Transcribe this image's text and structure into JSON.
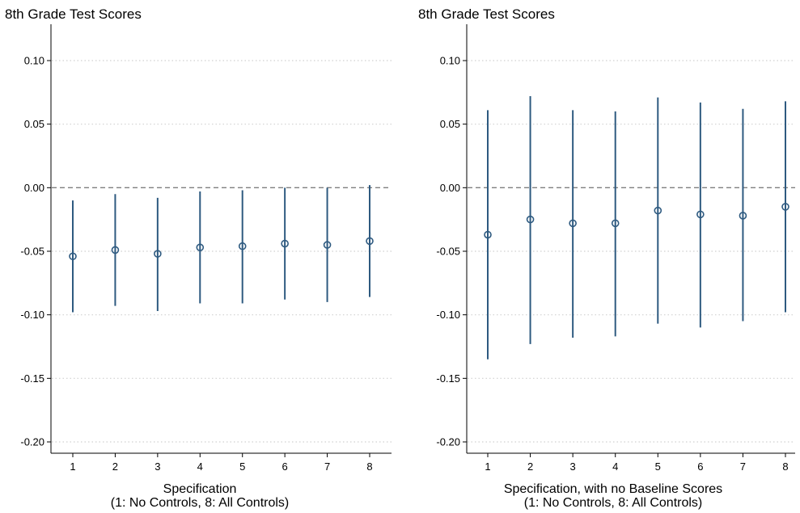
{
  "chart_data": [
    {
      "type": "scatter",
      "subtype": "coefficient-plot-with-confidence-intervals",
      "title": "8th Grade Test Scores",
      "xlabel_line1": "Specification",
      "xlabel_line2": "(1: No Controls, 8: All Controls)",
      "x": [
        1,
        2,
        3,
        4,
        5,
        6,
        7,
        8
      ],
      "x_ticks": [
        "1",
        "2",
        "3",
        "4",
        "5",
        "6",
        "7",
        "8"
      ],
      "estimates": [
        -0.054,
        -0.049,
        -0.052,
        -0.047,
        -0.046,
        -0.044,
        -0.045,
        -0.042
      ],
      "ci_low": [
        -0.098,
        -0.093,
        -0.097,
        -0.091,
        -0.091,
        -0.088,
        -0.09,
        -0.086
      ],
      "ci_high": [
        -0.01,
        -0.005,
        -0.008,
        -0.003,
        -0.002,
        0.0,
        0.0,
        0.002
      ],
      "ylim": [
        -0.2,
        0.1
      ],
      "y_ticks": [
        "0.10",
        "0.05",
        "0.00",
        "-0.05",
        "-0.10",
        "-0.15",
        "-0.20"
      ],
      "y_tick_values": [
        0.1,
        0.05,
        0.0,
        -0.05,
        -0.1,
        -0.15,
        -0.2
      ],
      "reference_line": 0,
      "grid": true
    },
    {
      "type": "scatter",
      "subtype": "coefficient-plot-with-confidence-intervals",
      "title": "8th Grade Test Scores",
      "xlabel_line1": "Specification, with no Baseline Scores",
      "xlabel_line2": "(1: No Controls, 8: All Controls)",
      "x": [
        1,
        2,
        3,
        4,
        5,
        6,
        7,
        8
      ],
      "x_ticks": [
        "1",
        "2",
        "3",
        "4",
        "5",
        "6",
        "7",
        "8"
      ],
      "estimates": [
        -0.037,
        -0.025,
        -0.028,
        -0.028,
        -0.018,
        -0.021,
        -0.022,
        -0.015
      ],
      "ci_low": [
        -0.135,
        -0.123,
        -0.118,
        -0.117,
        -0.107,
        -0.11,
        -0.105,
        -0.098
      ],
      "ci_high": [
        0.061,
        0.072,
        0.061,
        0.06,
        0.071,
        0.067,
        0.062,
        0.068
      ],
      "ylim": [
        -0.2,
        0.1
      ],
      "y_ticks": [
        "0.10",
        "0.05",
        "0.00",
        "-0.05",
        "-0.10",
        "-0.15",
        "-0.20"
      ],
      "y_tick_values": [
        0.1,
        0.05,
        0.0,
        -0.05,
        -0.1,
        -0.15,
        -0.2
      ],
      "reference_line": 0,
      "grid": true
    }
  ],
  "colors": {
    "estimate": "#2e5a80",
    "interval": "#2e5a80",
    "grid": "#d0d0d0",
    "reference_line": "#7f7f7f",
    "axis": "#000000"
  }
}
